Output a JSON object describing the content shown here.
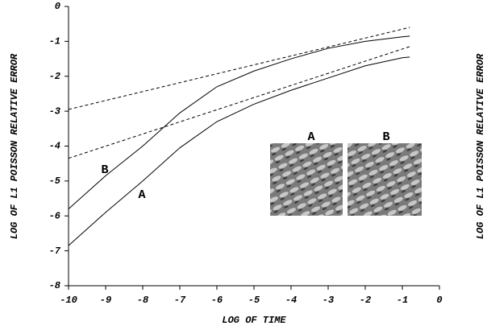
{
  "chart_data": {
    "type": "line",
    "x_label": "LOG OF TIME",
    "y_label": "LOG OF L1 POISSON RELATIVE ERROR",
    "xlim": [
      -10,
      0
    ],
    "xticks": [
      -10,
      -9,
      -8,
      -7,
      -6,
      -5,
      -4,
      -3,
      -2,
      -1,
      0
    ],
    "ylim": [
      -8,
      0
    ],
    "yticks": [
      -8,
      -7,
      -6,
      -5,
      -4,
      -3,
      -2,
      -1,
      0
    ],
    "series": [
      {
        "name": "B",
        "color": "#000000",
        "dash": false,
        "x": [
          -10,
          -9,
          -8,
          -7,
          -6,
          -5,
          -4,
          -3,
          -2,
          -1,
          -0.8
        ],
        "values": [
          -5.8,
          -4.85,
          -4.0,
          -3.05,
          -2.3,
          -1.85,
          -1.5,
          -1.2,
          -1.0,
          -0.87,
          -0.85
        ]
      },
      {
        "name": "A",
        "color": "#000000",
        "dash": false,
        "x": [
          -10,
          -9,
          -8,
          -7,
          -6,
          -5,
          -4,
          -3,
          -2,
          -1,
          -0.8
        ],
        "values": [
          -6.85,
          -5.9,
          -5.0,
          -4.05,
          -3.3,
          -2.8,
          -2.4,
          -2.05,
          -1.7,
          -1.47,
          -1.45
        ]
      },
      {
        "color": "#000000",
        "dash": true,
        "x": [
          -10,
          -0.8
        ],
        "values": [
          -2.95,
          -0.6
        ]
      },
      {
        "color": "#000000",
        "dash": true,
        "x": [
          -10,
          -0.8
        ],
        "values": [
          -4.35,
          -1.15
        ]
      }
    ]
  }
}
